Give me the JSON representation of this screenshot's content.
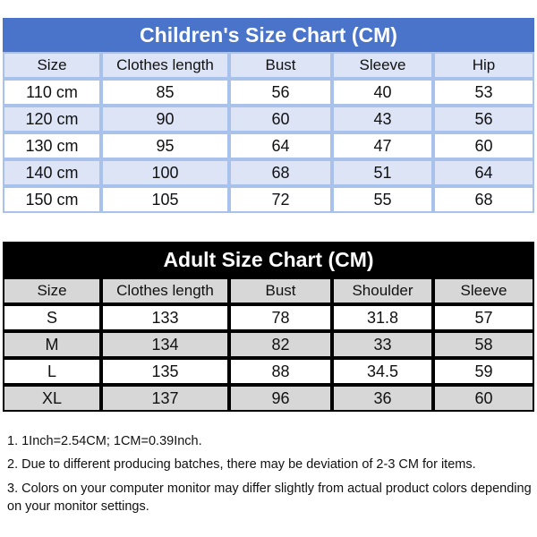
{
  "kids": {
    "title": "Children's Size Chart (CM)",
    "headers": [
      "Size",
      "Clothes length",
      "Bust",
      "Sleeve",
      "Hip"
    ],
    "rows": [
      [
        "110 cm",
        "85",
        "56",
        "40",
        "53"
      ],
      [
        "120 cm",
        "90",
        "60",
        "43",
        "56"
      ],
      [
        "130 cm",
        "95",
        "64",
        "47",
        "60"
      ],
      [
        "140 cm",
        "100",
        "68",
        "51",
        "64"
      ],
      [
        "150 cm",
        "105",
        "72",
        "55",
        "68"
      ]
    ],
    "colors": {
      "title_bg": "#4a74c9",
      "shade": "#dde4f6",
      "border": "#a9c2ec"
    }
  },
  "adult": {
    "title": "Adult Size Chart (CM)",
    "headers": [
      "Size",
      "Clothes length",
      "Bust",
      "Shoulder",
      "Sleeve"
    ],
    "rows": [
      [
        "S",
        "133",
        "78",
        "31.8",
        "57"
      ],
      [
        "M",
        "134",
        "82",
        "33",
        "58"
      ],
      [
        "L",
        "135",
        "88",
        "34.5",
        "59"
      ],
      [
        "XL",
        "137",
        "96",
        "36",
        "60"
      ]
    ],
    "colors": {
      "title_bg": "#000000",
      "shade": "#d7d7d7",
      "border": "#000000"
    }
  },
  "notes": [
    "1. 1Inch=2.54CM; 1CM=0.39Inch.",
    "2. Due to different producing batches, there may be deviation of 2-3 CM for items.",
    "3. Colors on your computer monitor may differ slightly from actual product colors depending on your monitor settings."
  ]
}
